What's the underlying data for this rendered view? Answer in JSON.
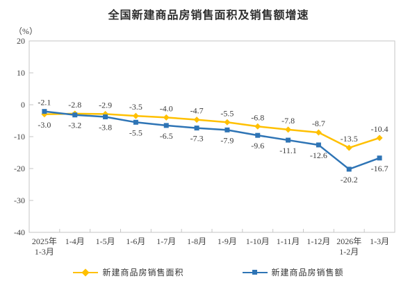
{
  "title": "全国新建商品房销售面积及销售额增速",
  "y_axis_unit": "（%）",
  "colors": {
    "sales_area": "#FFC000",
    "sales_amount": "#2E74B5",
    "axis_line": "#C6C6C6",
    "tick_text": "#404040",
    "data_label_text": "#3b3b3b"
  },
  "chart_data": {
    "type": "line",
    "title": "全国新建商品房销售面积及销售额增速",
    "ylabel": "（%）",
    "ylim": [
      -40,
      20
    ],
    "y_ticks": [
      20,
      10,
      0,
      -10,
      -20,
      -30,
      -40
    ],
    "grid": false,
    "legend_position": "bottom",
    "categories": [
      "2025年\n1-3月",
      "1-4月",
      "1-5月",
      "1-6月",
      "1-7月",
      "1-8月",
      "1-9月",
      "1-10月",
      "1-11月",
      "1-12月",
      "2026年\n1-2月",
      "1-3月"
    ],
    "series": [
      {
        "name": "新建商品房销售面积",
        "color": "#FFC000",
        "marker": "diamond",
        "values": [
          -3.0,
          -2.8,
          -2.9,
          -3.5,
          -4.0,
          -4.7,
          -5.5,
          -6.8,
          -7.8,
          -8.7,
          -13.5,
          -10.4
        ]
      },
      {
        "name": "新建商品房销售额",
        "color": "#2E74B5",
        "marker": "square",
        "values": [
          -2.1,
          -3.2,
          -3.8,
          -5.5,
          -6.5,
          -7.3,
          -7.9,
          -9.6,
          -11.1,
          -12.6,
          -20.2,
          -16.7
        ]
      }
    ]
  }
}
